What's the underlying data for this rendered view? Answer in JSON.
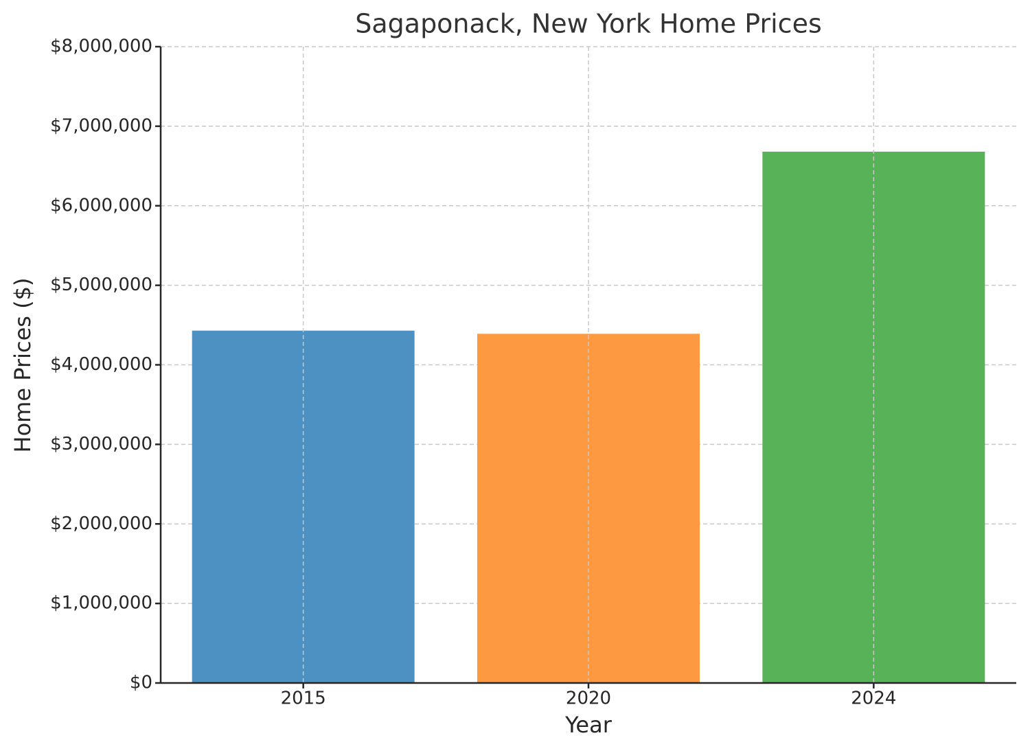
{
  "chart_data": {
    "type": "bar",
    "title": "Sagaponack, New York Home Prices",
    "x_label": "Year",
    "y_label": "Home Prices ($)",
    "categories": [
      "2015",
      "2020",
      "2024"
    ],
    "values": [
      4430000,
      4390000,
      6680000
    ],
    "colors": [
      "#4c91c1",
      "#fd9940",
      "#58b257"
    ],
    "ylim": [
      0,
      8000000
    ],
    "yticks": [
      {
        "value": 0,
        "label": "$0"
      },
      {
        "value": 1000000,
        "label": "$1,000,000"
      },
      {
        "value": 2000000,
        "label": "$2,000,000"
      },
      {
        "value": 3000000,
        "label": "$3,000,000"
      },
      {
        "value": 4000000,
        "label": "$4,000,000"
      },
      {
        "value": 5000000,
        "label": "$5,000,000"
      },
      {
        "value": 6000000,
        "label": "$6,000,000"
      },
      {
        "value": 7000000,
        "label": "$7,000,000"
      },
      {
        "value": 8000000,
        "label": "$8,000,000"
      }
    ],
    "grid": true
  }
}
